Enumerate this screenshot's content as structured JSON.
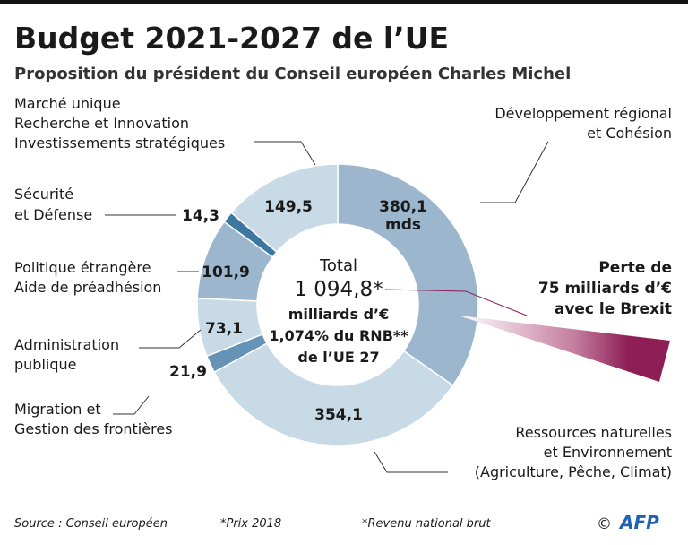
{
  "title": "Budget 2021-2027 de l’UE",
  "subtitle": "Proposition du président du Conseil européen Charles Michel",
  "chart_data": {
    "type": "pie",
    "donut": true,
    "unit": "mds",
    "segments": [
      {
        "label_lines": [
          "Développement régional",
          "et Cohésion"
        ],
        "value": 380.1,
        "value_label": "380,1",
        "unit_label": "mds",
        "color": "#9bb6cd"
      },
      {
        "label_lines": [
          "Ressources naturelles",
          "et Environnement",
          "(Agriculture, Pêche, Climat)"
        ],
        "value": 354.1,
        "value_label": "354,1",
        "color": "#c8dae5"
      },
      {
        "label_lines": [
          "Migration et",
          "Gestion des frontières"
        ],
        "value": 21.9,
        "value_label": "21,9",
        "color": "#6593b5"
      },
      {
        "label_lines": [
          "Administration",
          "publique"
        ],
        "value": 73.1,
        "value_label": "73,1",
        "color": "#c8dae5"
      },
      {
        "label_lines": [
          "Politique étrangère",
          "Aide de préadhésion"
        ],
        "value": 101.9,
        "value_label": "101,9",
        "color": "#9bb6cd"
      },
      {
        "label_lines": [
          "Sécurité",
          "et Défense"
        ],
        "value": 14.3,
        "value_label": "14,3",
        "color": "#3b77a0"
      },
      {
        "label_lines": [
          "Marché unique",
          "Recherche et Innovation",
          "Investissements stratégiques"
        ],
        "value": 149.5,
        "value_label": "149,5",
        "color": "#c8dae5"
      }
    ],
    "center": {
      "line1": "Total",
      "line2": "1 094,8*",
      "line3": "milliards d’€",
      "line4": "1,074% du RNB**",
      "line5": "de l’UE 27"
    },
    "annotation": {
      "lines": [
        "Perte de",
        "75 milliards d’€",
        "avec le Brexit"
      ],
      "color": "#8e1f56"
    }
  },
  "footer": {
    "source": "Source : Conseil européen",
    "note1": "*Prix 2018",
    "note2": "*Revenu national brut",
    "copyright": "©",
    "logo": "AFP",
    "logo_color": "#1f62b3"
  }
}
